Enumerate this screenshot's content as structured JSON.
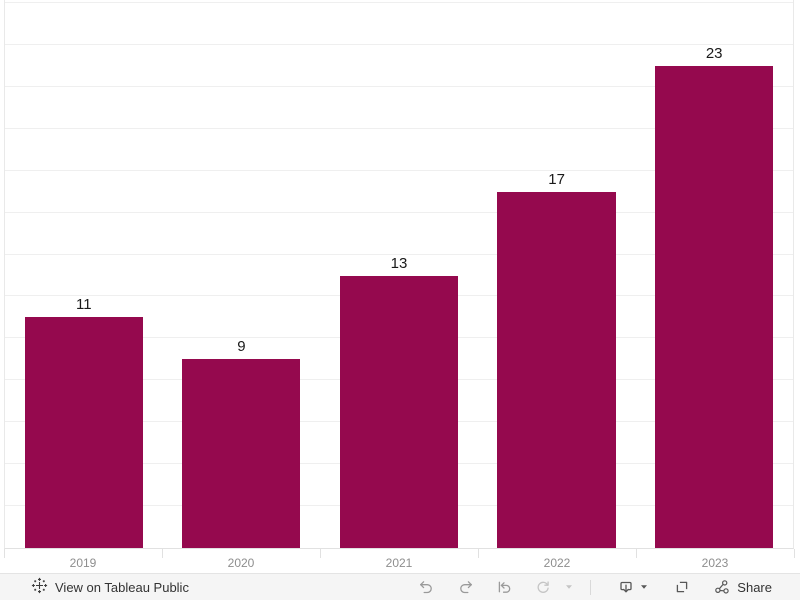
{
  "chart_data": {
    "type": "bar",
    "title": "",
    "categories": [
      "2019",
      "2020",
      "2021",
      "2022",
      "2023"
    ],
    "values": [
      11,
      9,
      13,
      17,
      23
    ],
    "xlabel": "",
    "ylabel": "",
    "ylim": [
      0,
      26
    ],
    "gridline_step": 2,
    "grid": true,
    "legend": "none",
    "bar_color": "#95094E",
    "value_label_color": "#1a1a1a",
    "axis_label_color": "#8e8e8e"
  },
  "toolbar": {
    "view_label": "View on Tableau Public",
    "share_label": "Share",
    "icons": [
      "tableau-logo",
      "undo",
      "redo",
      "reset",
      "refresh",
      "caret-down",
      "download",
      "fullscreen",
      "share-nodes"
    ]
  },
  "colors": {
    "background": "#ffffff",
    "gridline": "#efefef",
    "pane_border": "#e9e9e9",
    "axis_line": "#e1e1e1",
    "toolbar_bg": "#f5f5f5",
    "toolbar_border": "#e4e4e4",
    "icon_gray": "#9a9a9a",
    "icon_disabled": "#c5c5c5",
    "icon_dark": "#575757",
    "toolbar_text": "#333333"
  }
}
